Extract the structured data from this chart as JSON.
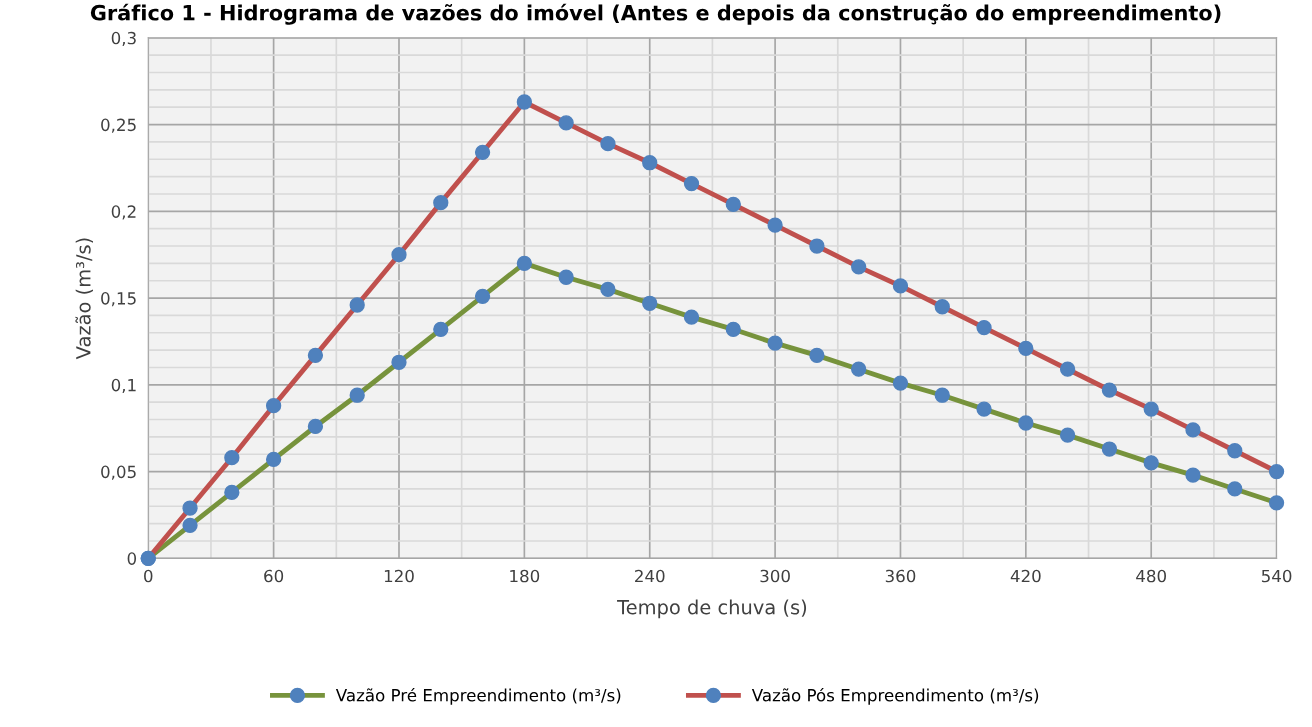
{
  "chart_data": {
    "type": "line",
    "title": "Gráfico 1 - Hidrograma de vazões do imóvel (Antes e depois da construção do empreendimento)",
    "xlabel": "Tempo de chuva (s)",
    "ylabel": "Vazão (m³/s)",
    "x": [
      0,
      20,
      40,
      60,
      80,
      100,
      120,
      140,
      160,
      180,
      200,
      220,
      240,
      260,
      280,
      300,
      320,
      340,
      360,
      380,
      400,
      420,
      440,
      460,
      480,
      500,
      520,
      540
    ],
    "series": [
      {
        "name": "Vazão Pré Empreendimento (m³/s)",
        "color": "#77933c",
        "values": [
          0,
          0.019,
          0.038,
          0.057,
          0.076,
          0.094,
          0.113,
          0.132,
          0.151,
          0.17,
          0.162,
          0.155,
          0.147,
          0.139,
          0.132,
          0.124,
          0.117,
          0.109,
          0.101,
          0.094,
          0.086,
          0.078,
          0.071,
          0.063,
          0.055,
          0.048,
          0.04,
          0.032
        ]
      },
      {
        "name": "Vazão Pós Empreendimento (m³/s)",
        "color": "#c0504d",
        "values": [
          0,
          0.029,
          0.058,
          0.088,
          0.117,
          0.146,
          0.175,
          0.205,
          0.234,
          0.263,
          0.251,
          0.239,
          0.228,
          0.216,
          0.204,
          0.192,
          0.18,
          0.168,
          0.157,
          0.145,
          0.133,
          0.121,
          0.109,
          0.097,
          0.086,
          0.074,
          0.062,
          0.05
        ]
      }
    ],
    "xlim": [
      0,
      540
    ],
    "xticks": [
      0,
      60,
      120,
      180,
      240,
      300,
      360,
      420,
      480,
      540
    ],
    "ylim": [
      0,
      0.3
    ],
    "yticks": [
      {
        "value": 0,
        "label": "0"
      },
      {
        "value": 0.05,
        "label": "0,05"
      },
      {
        "value": 0.1,
        "label": "0,1"
      },
      {
        "value": 0.15,
        "label": "0,15"
      },
      {
        "value": 0.2,
        "label": "0,2"
      },
      {
        "value": 0.25,
        "label": "0,25"
      },
      {
        "value": 0.3,
        "label": "0,3"
      }
    ],
    "grid": true,
    "legend": "bottom",
    "marker": "circle",
    "line_style": "solid"
  }
}
